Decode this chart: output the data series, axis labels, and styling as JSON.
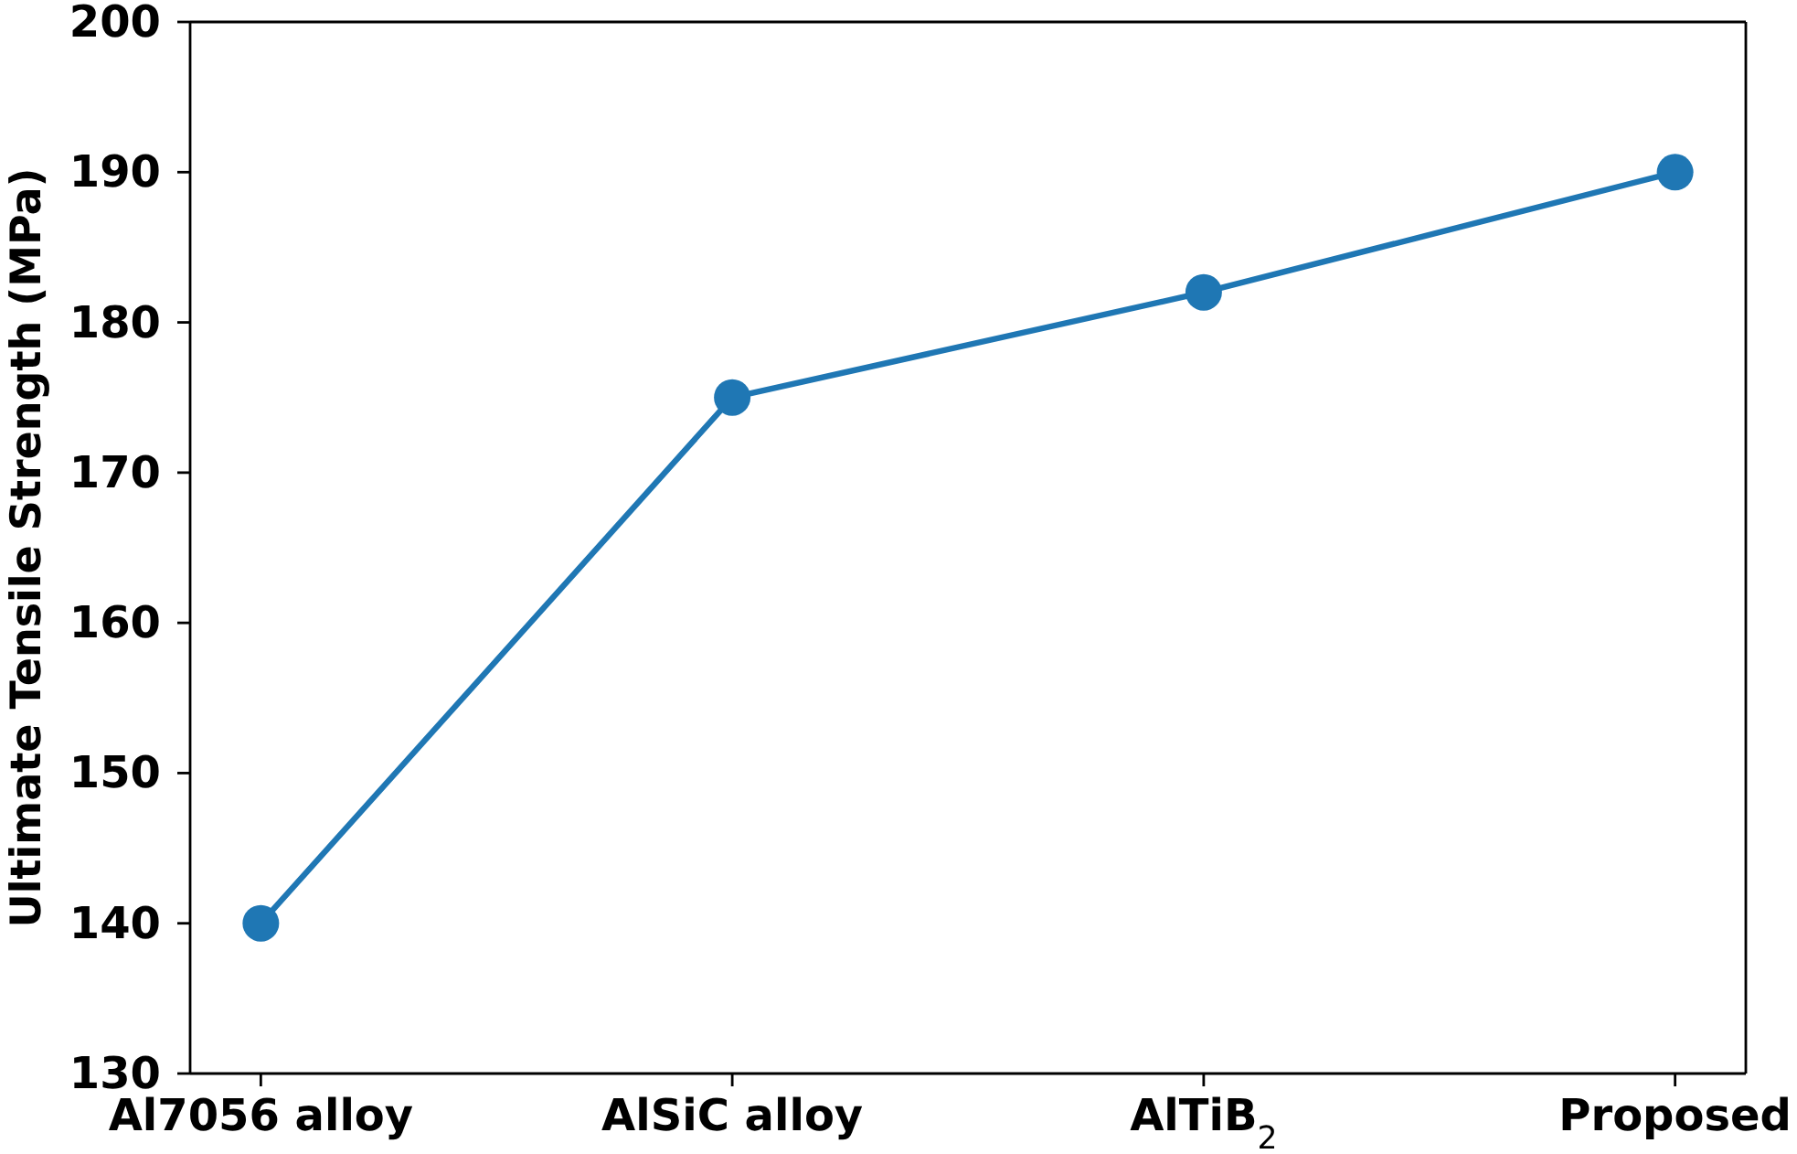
{
  "chart_data": {
    "type": "line",
    "ylabel": "Ultimate Tensile Strength (MPa)",
    "categories": [
      "Al7056 alloy",
      "AlSiC alloy",
      "AlTiB$_{2}$",
      "Proposed"
    ],
    "series": [
      {
        "color": "#1f77b4",
        "values": [
          140,
          175,
          182,
          190
        ]
      }
    ],
    "ylim": [
      130,
      200
    ],
    "yticks": [
      130,
      140,
      150,
      160,
      170,
      180,
      190,
      200
    ],
    "marker": "circle",
    "line_style": "solid"
  }
}
